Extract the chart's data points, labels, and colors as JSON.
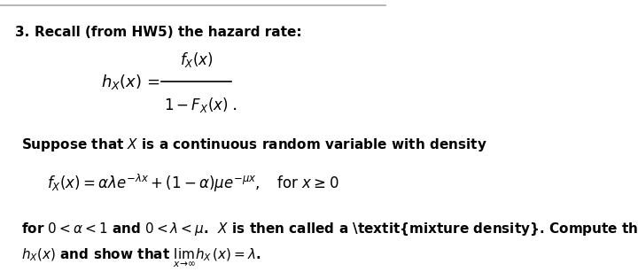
{
  "figsize": [
    7.2,
    3.07
  ],
  "dpi": 100,
  "bg_color": "#ffffff",
  "top_line_color": "#aaaaaa",
  "font_size_body": 11,
  "font_size_eq": 12
}
